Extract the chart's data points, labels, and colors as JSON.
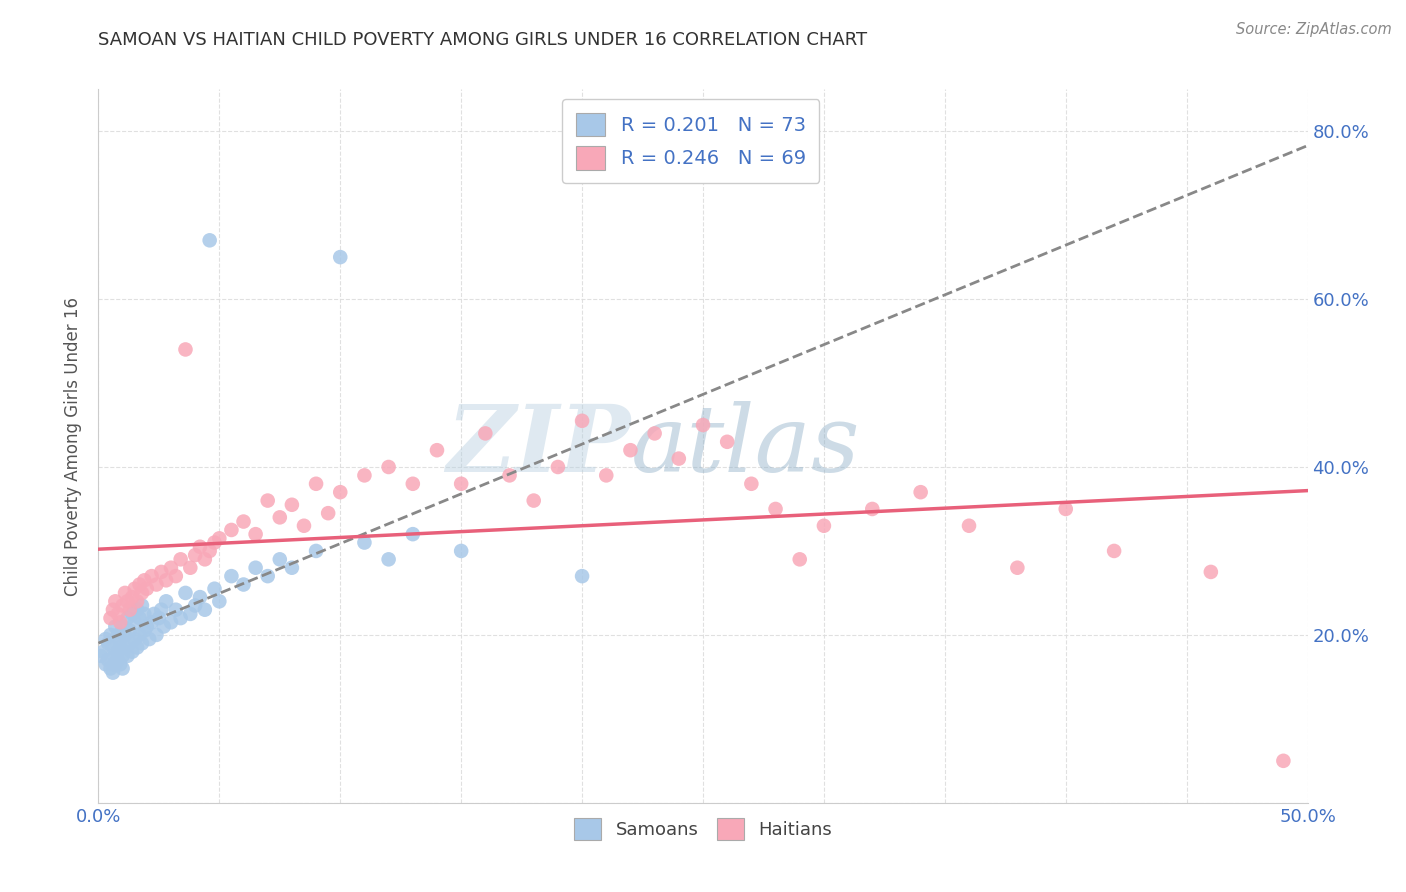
{
  "title": "SAMOAN VS HAITIAN CHILD POVERTY AMONG GIRLS UNDER 16 CORRELATION CHART",
  "source": "Source: ZipAtlas.com",
  "ylabel": "Child Poverty Among Girls Under 16",
  "xlim": [
    0.0,
    0.5
  ],
  "ylim": [
    0.0,
    0.85
  ],
  "xtick_positions": [
    0.0,
    0.05,
    0.1,
    0.15,
    0.2,
    0.25,
    0.3,
    0.35,
    0.4,
    0.45,
    0.5
  ],
  "xtick_labels": [
    "0.0%",
    "",
    "",
    "",
    "",
    "",
    "",
    "",
    "",
    "",
    "50.0%"
  ],
  "ytick_positions": [
    0.0,
    0.2,
    0.4,
    0.6,
    0.8
  ],
  "ytick_labels": [
    "",
    "20.0%",
    "40.0%",
    "60.0%",
    "80.0%"
  ],
  "samoan_color": "#a8c8e8",
  "haitian_color": "#f8a8b8",
  "samoan_line_color": "#888888",
  "haitian_line_color": "#e8607a",
  "samoan_line_style": "--",
  "haitian_line_style": "-",
  "watermark_zip": "ZIP",
  "watermark_atlas": "atlas",
  "legend_text_color": "#4472c4",
  "tick_color": "#4472c4",
  "ylabel_color": "#555555",
  "title_color": "#333333",
  "source_color": "#888888",
  "grid_color": "#dddddd",
  "background_color": "#ffffff",
  "legend_R_samoan": "0.201",
  "legend_N_samoan": "73",
  "legend_R_haitian": "0.246",
  "legend_N_haitian": "69",
  "samoan_x": [
    0.001,
    0.002,
    0.003,
    0.003,
    0.004,
    0.004,
    0.005,
    0.005,
    0.006,
    0.006,
    0.007,
    0.007,
    0.007,
    0.008,
    0.008,
    0.008,
    0.009,
    0.009,
    0.009,
    0.01,
    0.01,
    0.01,
    0.011,
    0.011,
    0.012,
    0.012,
    0.013,
    0.013,
    0.014,
    0.014,
    0.015,
    0.015,
    0.016,
    0.016,
    0.017,
    0.017,
    0.018,
    0.018,
    0.019,
    0.019,
    0.02,
    0.021,
    0.022,
    0.023,
    0.024,
    0.025,
    0.026,
    0.027,
    0.028,
    0.03,
    0.032,
    0.034,
    0.036,
    0.038,
    0.04,
    0.042,
    0.044,
    0.046,
    0.048,
    0.05,
    0.055,
    0.06,
    0.065,
    0.07,
    0.075,
    0.08,
    0.09,
    0.1,
    0.11,
    0.12,
    0.13,
    0.15,
    0.2
  ],
  "samoan_y": [
    0.175,
    0.18,
    0.165,
    0.195,
    0.17,
    0.19,
    0.16,
    0.2,
    0.155,
    0.185,
    0.175,
    0.165,
    0.21,
    0.18,
    0.17,
    0.2,
    0.165,
    0.185,
    0.195,
    0.175,
    0.16,
    0.21,
    0.2,
    0.185,
    0.175,
    0.22,
    0.19,
    0.205,
    0.18,
    0.225,
    0.195,
    0.215,
    0.185,
    0.23,
    0.2,
    0.22,
    0.19,
    0.235,
    0.205,
    0.225,
    0.21,
    0.195,
    0.215,
    0.225,
    0.2,
    0.22,
    0.23,
    0.21,
    0.24,
    0.215,
    0.23,
    0.22,
    0.25,
    0.225,
    0.235,
    0.245,
    0.23,
    0.67,
    0.255,
    0.24,
    0.27,
    0.26,
    0.28,
    0.27,
    0.29,
    0.28,
    0.3,
    0.65,
    0.31,
    0.29,
    0.32,
    0.3,
    0.27
  ],
  "haitian_x": [
    0.005,
    0.006,
    0.007,
    0.008,
    0.009,
    0.01,
    0.011,
    0.012,
    0.013,
    0.014,
    0.015,
    0.016,
    0.017,
    0.018,
    0.019,
    0.02,
    0.022,
    0.024,
    0.026,
    0.028,
    0.03,
    0.032,
    0.034,
    0.036,
    0.038,
    0.04,
    0.042,
    0.044,
    0.046,
    0.048,
    0.05,
    0.055,
    0.06,
    0.065,
    0.07,
    0.075,
    0.08,
    0.085,
    0.09,
    0.095,
    0.1,
    0.11,
    0.12,
    0.13,
    0.14,
    0.15,
    0.16,
    0.17,
    0.18,
    0.19,
    0.2,
    0.21,
    0.22,
    0.23,
    0.24,
    0.25,
    0.26,
    0.27,
    0.28,
    0.29,
    0.3,
    0.32,
    0.34,
    0.36,
    0.38,
    0.4,
    0.42,
    0.46,
    0.49
  ],
  "haitian_y": [
    0.22,
    0.23,
    0.24,
    0.225,
    0.215,
    0.235,
    0.25,
    0.24,
    0.23,
    0.245,
    0.255,
    0.24,
    0.26,
    0.25,
    0.265,
    0.255,
    0.27,
    0.26,
    0.275,
    0.265,
    0.28,
    0.27,
    0.29,
    0.54,
    0.28,
    0.295,
    0.305,
    0.29,
    0.3,
    0.31,
    0.315,
    0.325,
    0.335,
    0.32,
    0.36,
    0.34,
    0.355,
    0.33,
    0.38,
    0.345,
    0.37,
    0.39,
    0.4,
    0.38,
    0.42,
    0.38,
    0.44,
    0.39,
    0.36,
    0.4,
    0.455,
    0.39,
    0.42,
    0.44,
    0.41,
    0.45,
    0.43,
    0.38,
    0.35,
    0.29,
    0.33,
    0.35,
    0.37,
    0.33,
    0.28,
    0.35,
    0.3,
    0.275,
    0.05
  ]
}
